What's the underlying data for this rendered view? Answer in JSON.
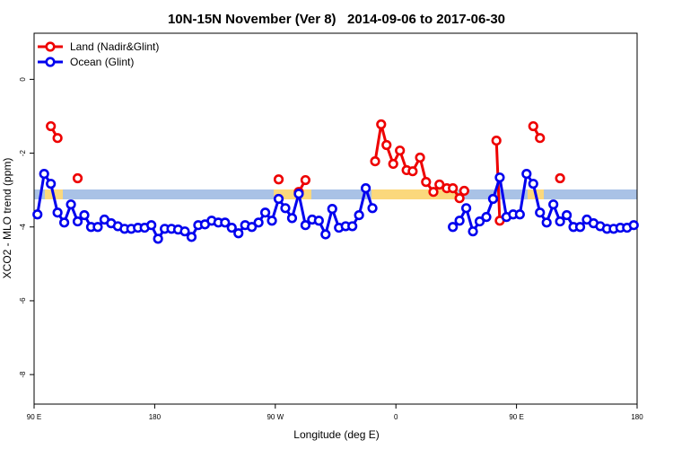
{
  "chart_data": {
    "type": "line",
    "title": "10N-15N November (Ver 8)   2014-09-06 to 2017-06-30",
    "xlabel": "Longitude (deg E)",
    "ylabel": "XCO2 - MLO trend (ppm)",
    "xlim": [
      90,
      540
    ],
    "ylim": [
      -8.8,
      1.25
    ],
    "xticks": [
      {
        "value": 90,
        "label": "90 E"
      },
      180,
      {
        "value": 270,
        "label": "90 W"
      },
      {
        "value": 360,
        "label": "0"
      },
      {
        "value": 450,
        "label": "90 E"
      },
      {
        "value": 540,
        "label": "180"
      }
    ],
    "yticks": [
      0,
      -2,
      -4,
      -6,
      -8
    ],
    "legend": "top-left",
    "series": [
      {
        "name": "Land (Nadir&Glint)",
        "color": "#ee0000",
        "x": [
          102.5,
          107.5,
          115,
          122.5,
          200,
          272.5,
          280,
          287.5,
          292.5,
          320,
          344.5,
          349,
          353,
          358,
          363,
          368,
          372.5,
          378,
          382.5,
          388,
          392.5,
          398,
          402.5,
          407.5,
          411,
          420,
          435,
          437.5,
          445,
          462.5,
          467.5,
          475,
          482.5
        ],
        "values": [
          -1.27,
          -1.59,
          null,
          -2.68,
          null,
          -2.71,
          null,
          -3.05,
          -2.73,
          null,
          -2.22,
          -1.22,
          -1.78,
          -2.29,
          -1.93,
          -2.46,
          -2.49,
          -2.12,
          -2.78,
          -3.05,
          -2.85,
          -2.95,
          -2.95,
          -3.22,
          -3.02,
          null,
          -1.66,
          -3.83,
          null,
          -1.27,
          -1.59,
          null,
          -2.68
        ]
      },
      {
        "name": "Ocean (Glint)",
        "color": "#0000ee",
        "x": [
          92.5,
          97.5,
          102.5,
          107.5,
          112.5,
          117.5,
          122.5,
          127.5,
          132.5,
          137.5,
          142.5,
          147.5,
          152.5,
          157.5,
          162.5,
          167.5,
          172.5,
          177.5,
          182.5,
          187.5,
          192.5,
          197.5,
          202.5,
          207.5,
          212.5,
          217.5,
          222.5,
          227.5,
          232.5,
          237.5,
          242.5,
          247.5,
          252.5,
          257.5,
          262.5,
          267.5,
          272.5,
          277.5,
          282.5,
          287.5,
          292.5,
          297.5,
          302.5,
          307.5,
          312.5,
          317.5,
          322.5,
          327.5,
          332.5,
          337.5,
          342.5,
          347.5,
          352.5,
          357.5,
          362.5,
          367.5,
          372.5,
          377.5,
          382.5,
          387.5,
          392.5,
          397.5,
          402.5,
          407.5,
          412.5,
          417.5,
          422.5,
          427.5,
          432.5,
          437.5,
          442.5,
          447.5,
          452.5,
          457.5,
          462.5,
          467.5,
          472.5,
          477.5,
          482.5,
          487.5,
          492.5,
          497.5,
          502.5,
          507.5,
          512.5,
          517.5,
          522.5,
          527.5,
          532.5,
          537.5
        ],
        "values": [
          -3.66,
          -2.56,
          -2.83,
          -3.61,
          -3.88,
          -3.39,
          -3.85,
          -3.68,
          -4.0,
          -4.0,
          -3.8,
          -3.9,
          -3.98,
          -4.05,
          -4.05,
          -4.02,
          -4.02,
          -3.95,
          -4.32,
          -4.05,
          -4.05,
          -4.07,
          -4.12,
          -4.27,
          -3.95,
          -3.93,
          -3.83,
          -3.88,
          -3.88,
          -4.02,
          -4.17,
          -3.95,
          -4.0,
          -3.88,
          -3.61,
          -3.83,
          -3.24,
          -3.49,
          -3.76,
          -3.1,
          -3.95,
          -3.8,
          -3.83,
          -4.2,
          -3.51,
          -4.02,
          -3.98,
          -3.98,
          -3.68,
          -2.95,
          -3.49,
          null,
          null,
          null,
          null,
          null,
          null,
          null,
          null,
          null,
          null,
          null,
          -4.0,
          -3.83,
          -3.49,
          -4.12,
          -3.85,
          -3.73,
          -3.24,
          -2.66,
          -3.73,
          -3.66,
          -3.66,
          -2.56,
          -2.83,
          -3.61,
          -3.88,
          -3.39,
          -3.85,
          -3.68,
          -4.0,
          -4.0,
          -3.8,
          -3.9,
          -3.98,
          -4.05,
          -4.05,
          -4.02,
          -4.02,
          -3.95
        ]
      }
    ]
  }
}
